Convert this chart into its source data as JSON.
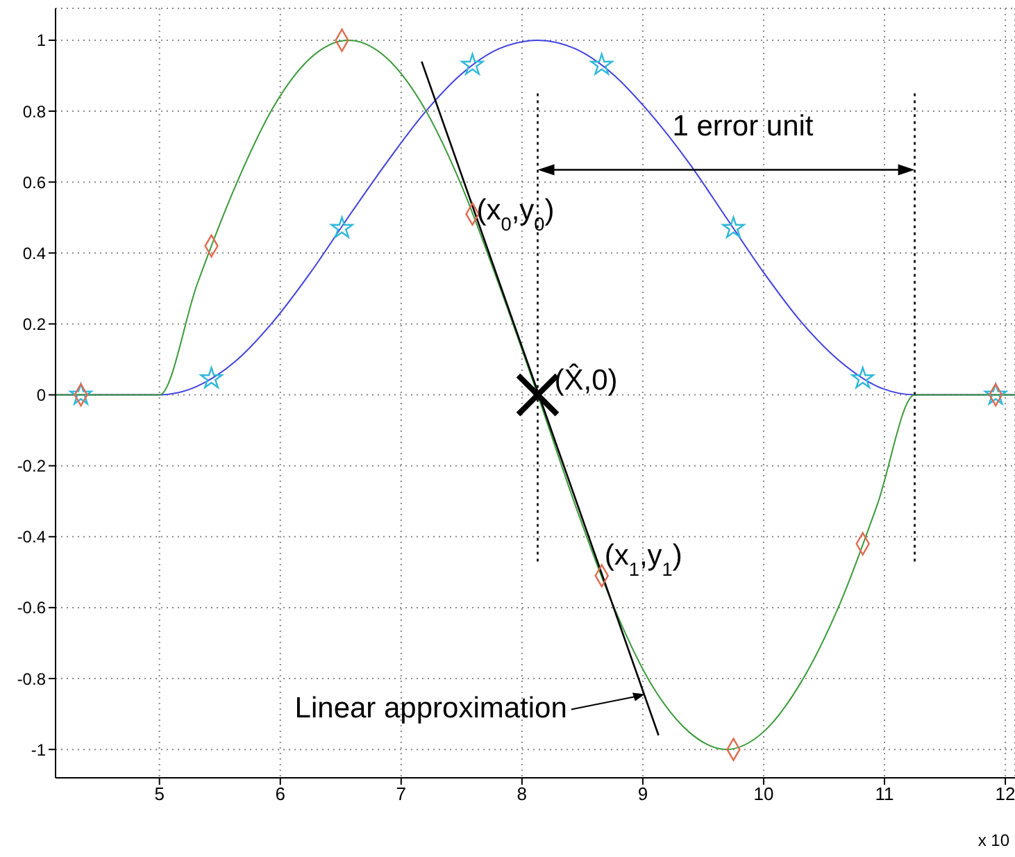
{
  "chart_data": {
    "type": "line",
    "annotations": [
      "1 error unit",
      {
        "text": "(x$_{0}$,y$_{0}$)",
        "x": 7.59,
        "y": 0.51
      },
      {
        "text": "(X̂,0)",
        "x": 8.13,
        "y": 0
      },
      {
        "text": "(x$_{1}$,y$_{1}$)",
        "x": 8.66,
        "y": -0.51
      },
      {
        "text": "Linear approximation",
        "x": 9.04,
        "y": -0.84
      },
      "x 10"
    ],
    "xlim": [
      4.14,
      12.08
    ],
    "xticks": [
      5,
      6,
      7,
      8,
      9,
      10,
      11,
      12
    ],
    "ylim": [
      -1.08,
      1.09
    ],
    "yticks": [
      -1,
      -0.8,
      -0.6,
      -0.4,
      -0.2,
      0,
      0.2,
      0.4,
      0.6,
      0.8,
      1
    ],
    "grid": true,
    "legend": false,
    "series": [
      {
        "color": "#4040e0",
        "marker": "none",
        "x": [
          4.14,
          5,
          5.31,
          5.63,
          5.94,
          6.25,
          6.56,
          6.88,
          7.19,
          7.5,
          7.81,
          8.13,
          8.44,
          8.75,
          9.06,
          9.38,
          9.69,
          10,
          10.31,
          10.63,
          10.94,
          11.25,
          12.08
        ],
        "values": [
          0,
          0,
          0.024,
          0.095,
          0.206,
          0.345,
          0.5,
          0.655,
          0.794,
          0.905,
          0.976,
          1,
          0.976,
          0.905,
          0.794,
          0.655,
          0.5,
          0.345,
          0.206,
          0.095,
          0.024,
          0,
          0
        ]
      },
      {
        "color": "#3a9a3a",
        "marker": "none",
        "x": [
          4.14,
          5,
          5.31,
          5.63,
          5.94,
          6.25,
          6.56,
          6.88,
          7.19,
          7.5,
          7.81,
          8.13,
          8.44,
          8.75,
          9.06,
          9.38,
          9.69,
          10,
          10.31,
          10.63,
          10.94,
          11.25,
          12.08
        ],
        "values": [
          0,
          0,
          0.31,
          0.59,
          0.81,
          0.95,
          1,
          0.95,
          0.81,
          0.59,
          0.31,
          0,
          -0.31,
          -0.59,
          -0.81,
          -0.95,
          -1,
          -0.95,
          -0.81,
          -0.59,
          -0.31,
          0,
          0
        ]
      },
      {
        "type": "scatter",
        "color": "#30b8d8",
        "marker": "star",
        "x": [
          4.35,
          5.43,
          6.51,
          7.59,
          8.66,
          9.75,
          10.82,
          11.92
        ],
        "values": [
          0,
          0.046,
          0.47,
          0.93,
          0.93,
          0.47,
          0.046,
          0
        ]
      },
      {
        "type": "scatter",
        "color": "#e06a50",
        "marker": "diamond",
        "x": [
          4.35,
          5.43,
          6.51,
          7.59,
          8.66,
          9.75,
          10.82,
          11.92
        ],
        "values": [
          0,
          0.42,
          1,
          0.51,
          -0.51,
          -1,
          -0.42,
          0
        ]
      },
      {
        "color": "#000000",
        "marker": "none",
        "x": [
          7.17,
          9.13
        ],
        "values": [
          0.94,
          -0.96
        ]
      },
      {
        "type": "scatter",
        "color": "#000000",
        "marker": "cross",
        "x": [
          8.13
        ],
        "values": [
          0
        ]
      },
      {
        "color": "#000000",
        "marker": "none",
        "line_style": "dotted",
        "x": [
          8.13,
          8.13
        ],
        "values": [
          0.85,
          -0.47
        ]
      },
      {
        "color": "#000000",
        "marker": "none",
        "line_style": "dotted",
        "x": [
          11.25,
          11.25
        ],
        "values": [
          0.85,
          -0.47
        ]
      }
    ]
  }
}
